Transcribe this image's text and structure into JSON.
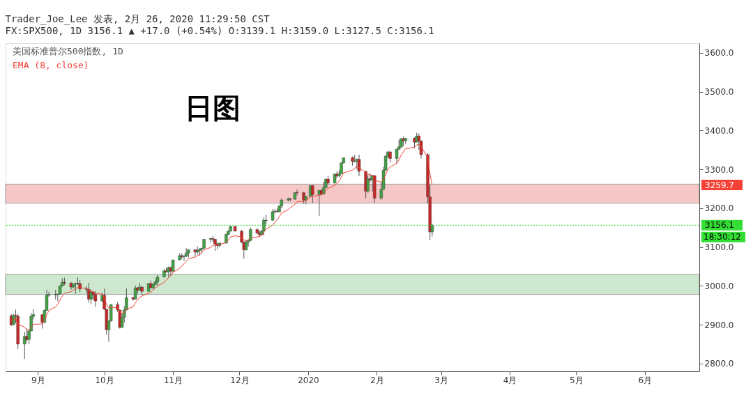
{
  "chart_data": {
    "type": "candlestick",
    "title": "Trader_Joe_Lee 发表, 2月 26, 2020 11:29:50 CST",
    "subtitle": "FX:SPX500, 1D 3156.1 ▲ +17.0 (+0.54%) O:3139.1 H:3159.0 L:3127.5 C:3156.1",
    "x": [
      "2019-08-20",
      "2019-08-21",
      "2019-08-22",
      "2019-08-23",
      "2019-08-26",
      "2019-08-27",
      "2019-08-28",
      "2019-08-29",
      "2019-08-30",
      "2019-09-03",
      "2019-09-04",
      "2019-09-05",
      "2019-09-06",
      "2019-09-09",
      "2019-09-10",
      "2019-09-11",
      "2019-09-12",
      "2019-09-13",
      "2019-09-16",
      "2019-09-17",
      "2019-09-18",
      "2019-09-19",
      "2019-09-20",
      "2019-09-23",
      "2019-09-24",
      "2019-09-25",
      "2019-09-26",
      "2019-09-27",
      "2019-09-30",
      "2019-10-01",
      "2019-10-02",
      "2019-10-03",
      "2019-10-04",
      "2019-10-07",
      "2019-10-08",
      "2019-10-09",
      "2019-10-10",
      "2019-10-11",
      "2019-10-14",
      "2019-10-15",
      "2019-10-16",
      "2019-10-17",
      "2019-10-18",
      "2019-10-21",
      "2019-10-22",
      "2019-10-23",
      "2019-10-24",
      "2019-10-25",
      "2019-10-28",
      "2019-10-29",
      "2019-10-30",
      "2019-10-31",
      "2019-11-01",
      "2019-11-04",
      "2019-11-05",
      "2019-11-06",
      "2019-11-07",
      "2019-11-08",
      "2019-11-11",
      "2019-11-12",
      "2019-11-13",
      "2019-11-14",
      "2019-11-15",
      "2019-11-18",
      "2019-11-19",
      "2019-11-20",
      "2019-11-21",
      "2019-11-22",
      "2019-11-25",
      "2019-11-26",
      "2019-11-27",
      "2019-11-29",
      "2019-12-02",
      "2019-12-03",
      "2019-12-04",
      "2019-12-05",
      "2019-12-06",
      "2019-12-09",
      "2019-12-10",
      "2019-12-11",
      "2019-12-12",
      "2019-12-13",
      "2019-12-16",
      "2019-12-17",
      "2019-12-18",
      "2019-12-19",
      "2019-12-20",
      "2019-12-23",
      "2019-12-24",
      "2019-12-26",
      "2019-12-27",
      "2019-12-30",
      "2019-12-31",
      "2020-01-02",
      "2020-01-03",
      "2020-01-06",
      "2020-01-07",
      "2020-01-08",
      "2020-01-09",
      "2020-01-10",
      "2020-01-13",
      "2020-01-14",
      "2020-01-15",
      "2020-01-16",
      "2020-01-17",
      "2020-01-21",
      "2020-01-22",
      "2020-01-23",
      "2020-01-24",
      "2020-01-27",
      "2020-01-28",
      "2020-01-29",
      "2020-01-30",
      "2020-01-31",
      "2020-02-03",
      "2020-02-04",
      "2020-02-05",
      "2020-02-06",
      "2020-02-07",
      "2020-02-10",
      "2020-02-11",
      "2020-02-12",
      "2020-02-13",
      "2020-02-14",
      "2020-02-18",
      "2020-02-19",
      "2020-02-20",
      "2020-02-21",
      "2020-02-24",
      "2020-02-25",
      "2020-02-26"
    ],
    "series": [
      {
        "name": "美国标准普尔500指数, 1D",
        "ohlc": [
          [
            2923,
            2927,
            2897,
            2900
          ],
          [
            2900,
            2928,
            2899,
            2924
          ],
          [
            2924,
            2939,
            2904,
            2922
          ],
          [
            2922,
            2928,
            2838,
            2850
          ],
          [
            2850,
            2882,
            2812,
            2870
          ],
          [
            2870,
            2890,
            2856,
            2862
          ],
          [
            2862,
            2888,
            2850,
            2884
          ],
          [
            2884,
            2930,
            2883,
            2922
          ],
          [
            2922,
            2940,
            2914,
            2926
          ],
          [
            2926,
            2927,
            2890,
            2906
          ],
          [
            2906,
            2940,
            2905,
            2937
          ],
          [
            2937,
            2990,
            2936,
            2976
          ],
          [
            2976,
            2985,
            2972,
            2978
          ],
          [
            2977,
            2990,
            2965,
            2978
          ],
          [
            2978,
            2980,
            2960,
            2979
          ],
          [
            2979,
            3001,
            2978,
            3000
          ],
          [
            3000,
            3020,
            2998,
            3009
          ],
          [
            3009,
            3021,
            3002,
            3007
          ],
          [
            3007,
            3010,
            2990,
            2997
          ],
          [
            2997,
            3006,
            2994,
            3005
          ],
          [
            3005,
            3008,
            2980,
            3006
          ],
          [
            3007,
            3022,
            3002,
            3006
          ],
          [
            3006,
            3015,
            2984,
            2992
          ],
          [
            2992,
            2999,
            2982,
            2991
          ],
          [
            2991,
            3008,
            2957,
            2966
          ],
          [
            2966,
            2989,
            2953,
            2984
          ],
          [
            2984,
            2987,
            2964,
            2977
          ],
          [
            2977,
            2987,
            2946,
            2961
          ],
          [
            2961,
            2983,
            2959,
            2976
          ],
          [
            2976,
            2993,
            2938,
            2940
          ],
          [
            2940,
            2941,
            2874,
            2887
          ],
          [
            2887,
            2911,
            2856,
            2910
          ],
          [
            2910,
            2953,
            2907,
            2952
          ],
          [
            2952,
            2959,
            2933,
            2938
          ],
          [
            2938,
            2939,
            2890,
            2893
          ],
          [
            2893,
            2929,
            2892,
            2919
          ],
          [
            2919,
            2948,
            2905,
            2938
          ],
          [
            2938,
            2993,
            2937,
            2970
          ],
          [
            2970,
            2972,
            2962,
            2966
          ],
          [
            2966,
            3001,
            2965,
            2995
          ],
          [
            2995,
            2997,
            2980,
            2989
          ],
          [
            2989,
            3008,
            2987,
            2997
          ],
          [
            2997,
            3000,
            2976,
            2986
          ],
          [
            2986,
            3008,
            2985,
            3006
          ],
          [
            3006,
            3014,
            2995,
            2995
          ],
          [
            2995,
            3005,
            2991,
            3004
          ],
          [
            3004,
            3016,
            3001,
            3010
          ],
          [
            3010,
            3028,
            3000,
            3023
          ],
          [
            3023,
            3044,
            3022,
            3039
          ],
          [
            3039,
            3047,
            3034,
            3036
          ],
          [
            3036,
            3050,
            3023,
            3047
          ],
          [
            3047,
            3050,
            3026,
            3038
          ],
          [
            3038,
            3067,
            3036,
            3067
          ],
          [
            3067,
            3084,
            3066,
            3078
          ],
          [
            3078,
            3084,
            3069,
            3075
          ],
          [
            3075,
            3079,
            3064,
            3077
          ],
          [
            3077,
            3097,
            3074,
            3085
          ],
          [
            3085,
            3094,
            3073,
            3093
          ],
          [
            3093,
            3094,
            3076,
            3087
          ],
          [
            3087,
            3102,
            3081,
            3091
          ],
          [
            3091,
            3098,
            3078,
            3094
          ],
          [
            3094,
            3098,
            3083,
            3097
          ],
          [
            3097,
            3121,
            3096,
            3120
          ],
          [
            3120,
            3124,
            3112,
            3122
          ],
          [
            3122,
            3128,
            3113,
            3120
          ],
          [
            3120,
            3121,
            3090,
            3108
          ],
          [
            3108,
            3111,
            3094,
            3104
          ],
          [
            3104,
            3112,
            3099,
            3110
          ],
          [
            3110,
            3134,
            3109,
            3133
          ],
          [
            3133,
            3143,
            3131,
            3141
          ],
          [
            3141,
            3155,
            3140,
            3153
          ],
          [
            3153,
            3155,
            3140,
            3141
          ],
          [
            3141,
            3144,
            3110,
            3113
          ],
          [
            3113,
            3115,
            3070,
            3093
          ],
          [
            3093,
            3119,
            3091,
            3113
          ],
          [
            3113,
            3120,
            3102,
            3117
          ],
          [
            3117,
            3150,
            3116,
            3145
          ],
          [
            3145,
            3148,
            3134,
            3136
          ],
          [
            3136,
            3143,
            3126,
            3132
          ],
          [
            3132,
            3144,
            3130,
            3141
          ],
          [
            3141,
            3176,
            3130,
            3169
          ],
          [
            3168,
            3183,
            3158,
            3169
          ],
          [
            3169,
            3198,
            3168,
            3191
          ],
          [
            3191,
            3198,
            3187,
            3192
          ],
          [
            3192,
            3199,
            3189,
            3191
          ],
          [
            3191,
            3207,
            3190,
            3206
          ],
          [
            3206,
            3226,
            3200,
            3221
          ],
          [
            3221,
            3228,
            3218,
            3224
          ],
          [
            3224,
            3226,
            3218,
            3223
          ],
          [
            3223,
            3241,
            3222,
            3240
          ],
          [
            3241,
            3248,
            3233,
            3240
          ],
          [
            3240,
            3242,
            3212,
            3221
          ],
          [
            3221,
            3232,
            3210,
            3231
          ],
          [
            3231,
            3259,
            3230,
            3258
          ],
          [
            3258,
            3260,
            3213,
            3235
          ],
          [
            3235,
            3247,
            3180,
            3246
          ],
          [
            3246,
            3248,
            3232,
            3237
          ],
          [
            3237,
            3268,
            3235,
            3253
          ],
          [
            3253,
            3276,
            3252,
            3275
          ],
          [
            3275,
            3283,
            3262,
            3265
          ],
          [
            3265,
            3288,
            3264,
            3288
          ],
          [
            3288,
            3295,
            3278,
            3283
          ],
          [
            3283,
            3298,
            3280,
            3289
          ],
          [
            3289,
            3317,
            3288,
            3317
          ],
          [
            3317,
            3330,
            3315,
            3330
          ],
          [
            3330,
            3333,
            3310,
            3321
          ],
          [
            3320,
            3337,
            3318,
            3321
          ],
          [
            3321,
            3328,
            3300,
            3326
          ],
          [
            3326,
            3338,
            3283,
            3295
          ],
          [
            3295,
            3296,
            3225,
            3244
          ],
          [
            3244,
            3285,
            3240,
            3276
          ],
          [
            3276,
            3290,
            3268,
            3273
          ],
          [
            3273,
            3286,
            3243,
            3284
          ],
          [
            3284,
            3285,
            3214,
            3226
          ],
          [
            3226,
            3268,
            3222,
            3249
          ],
          [
            3249,
            3306,
            3248,
            3298
          ],
          [
            3298,
            3337,
            3296,
            3334
          ],
          [
            3334,
            3348,
            3330,
            3345
          ],
          [
            3345,
            3348,
            3318,
            3328
          ],
          [
            3328,
            3353,
            3314,
            3352
          ],
          [
            3352,
            3376,
            3350,
            3358
          ],
          [
            3358,
            3381,
            3356,
            3379
          ],
          [
            3379,
            3385,
            3360,
            3374
          ],
          [
            3374,
            3381,
            3366,
            3380
          ],
          [
            3380,
            3382,
            3355,
            3370
          ],
          [
            3370,
            3394,
            3370,
            3386
          ],
          [
            3386,
            3393,
            3350,
            3373
          ],
          [
            3373,
            3375,
            3328,
            3338
          ],
          [
            3338,
            3342,
            3212,
            3229
          ],
          [
            3229,
            3260,
            3118,
            3139
          ],
          [
            3139.1,
            3159.0,
            3127.5,
            3156.1
          ]
        ],
        "colors": [
          "#c62828",
          "#43a047",
          "#c62828",
          "#c62828",
          "#43a047",
          "#c62828",
          "#43a047",
          "#43a047",
          "#43a047",
          "#c62828",
          "#43a047",
          "#43a047",
          "#43a047",
          "#43a047",
          "#43a047",
          "#43a047",
          "#43a047",
          "#c62828",
          "#c62828",
          "#43a047",
          "#43a047",
          "#c62828",
          "#c62828",
          "#c62828",
          "#c62828",
          "#43a047",
          "#c62828",
          "#c62828",
          "#43a047",
          "#c62828",
          "#c62828",
          "#43a047",
          "#43a047",
          "#c62828",
          "#c62828",
          "#43a047",
          "#43a047",
          "#43a047",
          "#c62828",
          "#43a047",
          "#c62828",
          "#43a047",
          "#c62828",
          "#43a047",
          "#c62828",
          "#43a047",
          "#43a047",
          "#43a047",
          "#43a047",
          "#c62828",
          "#43a047",
          "#c62828",
          "#43a047",
          "#43a047",
          "#c62828",
          "#43a047",
          "#43a047",
          "#43a047",
          "#c62828",
          "#43a047",
          "#43a047",
          "#43a047",
          "#43a047",
          "#43a047",
          "#c62828",
          "#c62828",
          "#c62828",
          "#43a047",
          "#43a047",
          "#43a047",
          "#43a047",
          "#c62828",
          "#c62828",
          "#c62828",
          "#43a047",
          "#43a047",
          "#43a047",
          "#c62828",
          "#c62828",
          "#43a047",
          "#43a047",
          "#43a047",
          "#43a047",
          "#43a047",
          "#c62828",
          "#43a047",
          "#43a047",
          "#43a047",
          "#c62828",
          "#43a047",
          "#c62828",
          "#c62828",
          "#43a047",
          "#43a047",
          "#c62828",
          "#43a047",
          "#c62828",
          "#43a047",
          "#43a047",
          "#c62828",
          "#43a047",
          "#c62828",
          "#43a047",
          "#43a047",
          "#43a047",
          "#c62828",
          "#43a047",
          "#43a047",
          "#c62828",
          "#c62828",
          "#43a047",
          "#c62828",
          "#43a047",
          "#c62828",
          "#43a047",
          "#43a047",
          "#43a047",
          "#43a047",
          "#c62828",
          "#43a047",
          "#43a047",
          "#43a047",
          "#c62828",
          "#43a047",
          "#c62828",
          "#43a047",
          "#c62828",
          "#c62828",
          "#c62828",
          "#c62828",
          "#43a047"
        ]
      },
      {
        "name": "EMA (8, close)",
        "type": "line",
        "color": "#f44336",
        "values": [
          2910,
          2913,
          2915,
          2901,
          2894,
          2887,
          2886,
          2894,
          2901,
          2902,
          2910,
          2925,
          2937,
          2946,
          2953,
          2963,
          2973,
          2981,
          2985,
          2989,
          2993,
          2996,
          2995,
          2994,
          2988,
          2987,
          2985,
          2980,
          2979,
          2970,
          2952,
          2943,
          2945,
          2943,
          2932,
          2929,
          2931,
          2940,
          2946,
          2957,
          2964,
          2971,
          2974,
          2981,
          2984,
          2989,
          2994,
          3000,
          3009,
          3015,
          3022,
          3026,
          3035,
          3045,
          3052,
          3057,
          3063,
          3070,
          3074,
          3078,
          3081,
          3085,
          3093,
          3099,
          3104,
          3105,
          3105,
          3106,
          3112,
          3118,
          3126,
          3129,
          3126,
          3118,
          3117,
          3117,
          3123,
          3126,
          3127,
          3130,
          3139,
          3146,
          3156,
          3164,
          3170,
          3178,
          3188,
          3196,
          3202,
          3210,
          3217,
          3218,
          3221,
          3229,
          3230,
          3234,
          3235,
          3239,
          3247,
          3251,
          3259,
          3264,
          3270,
          3280,
          3291,
          3298,
          3303,
          3308,
          3305,
          3291,
          3288,
          3285,
          3285,
          3272,
          3267,
          3274,
          3287,
          3300,
          3306,
          3316,
          3325,
          3337,
          3345,
          3353,
          3357,
          3363,
          3365,
          3359,
          3330,
          3288,
          3259.7
        ]
      }
    ],
    "xlim": [
      "2019-08-19",
      "2020-06-24"
    ],
    "xticks": [
      {
        "value": "2019-09-01",
        "label": "9月"
      },
      {
        "value": "2019-10-01",
        "label": "10月"
      },
      {
        "value": "2019-11-01",
        "label": "11月"
      },
      {
        "value": "2019-12-01",
        "label": "12月"
      },
      {
        "value": "2020-01-01",
        "label": "2020"
      },
      {
        "value": "2020-02-01",
        "label": "2月"
      },
      {
        "value": "2020-03-01",
        "label": "3月"
      },
      {
        "value": "2020-04-01",
        "label": "4月"
      },
      {
        "value": "2020-05-01",
        "label": "5月"
      },
      {
        "value": "2020-06-01",
        "label": "6月"
      }
    ],
    "ylim": [
      2780,
      3625
    ],
    "yticks": [
      {
        "value": 2800,
        "label": "2800.0"
      },
      {
        "value": 2900,
        "label": "2900.0"
      },
      {
        "value": 3000,
        "label": "3000.0"
      },
      {
        "value": 3100,
        "label": "3100.0"
      },
      {
        "value": 3200,
        "label": "3200.0"
      },
      {
        "value": 3300,
        "label": "3300.0"
      },
      {
        "value": 3400,
        "label": "3400.0"
      },
      {
        "value": 3500,
        "label": "3500.0"
      },
      {
        "value": 3600,
        "label": "3600.0"
      }
    ],
    "bands": [
      {
        "axis": "y",
        "from": 3213,
        "to": 3262,
        "color": "#ef9a9a"
      },
      {
        "axis": "y",
        "from": 2978,
        "to": 3030,
        "color": "#a5d6a7"
      }
    ],
    "ref_lines": [
      {
        "axis": "y",
        "value": 3156.1,
        "label": "3156.1",
        "color": "#33dd33",
        "line_style": "dotted"
      }
    ],
    "annotations": [
      "日图",
      "18:30:12",
      "3259.7"
    ],
    "legend": "top left",
    "grid": false
  }
}
